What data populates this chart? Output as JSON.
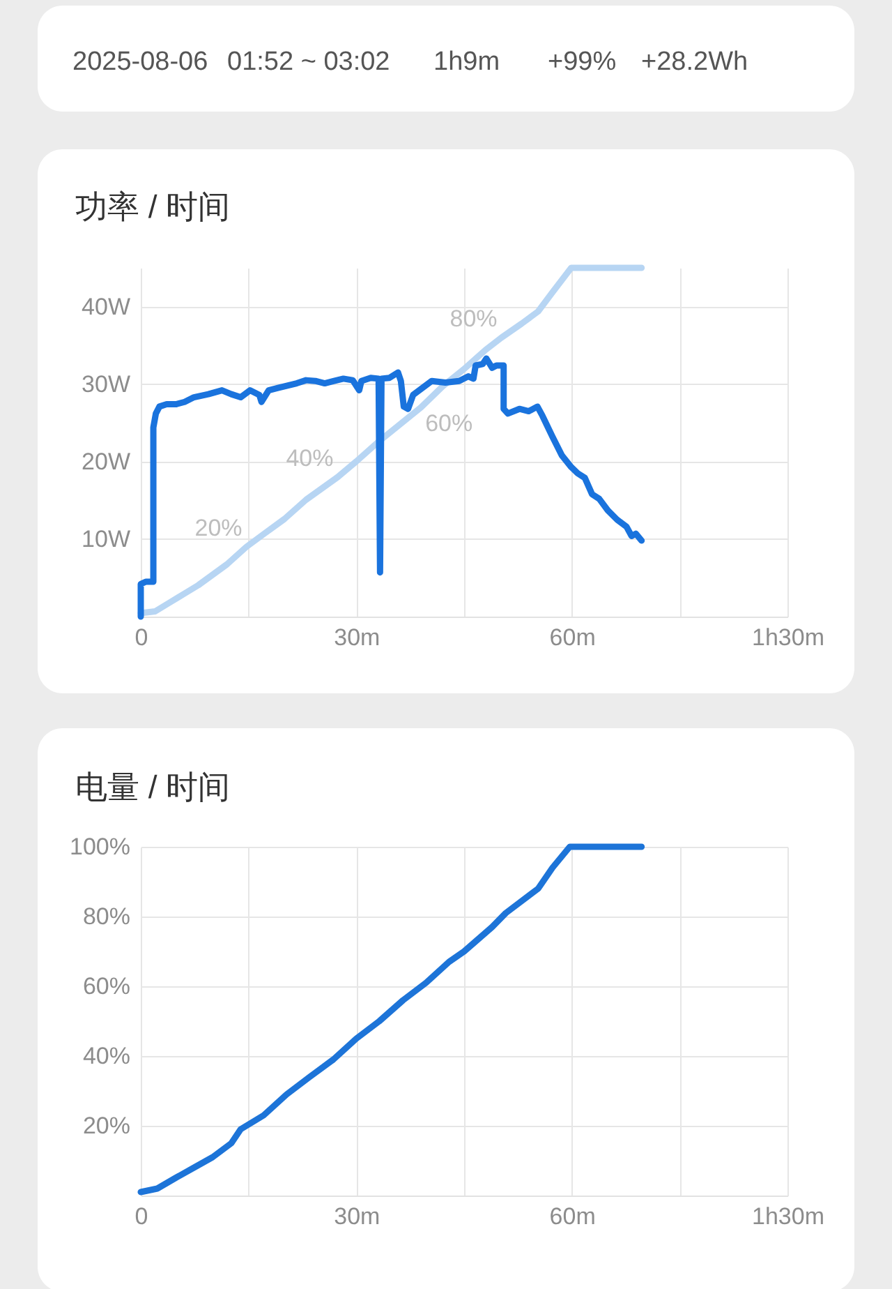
{
  "chart_data": [
    {
      "type": "other",
      "annotations": [
        "2025-08-06",
        "01:52 ~ 03:02",
        "1h9m",
        "+99%",
        "+28.2Wh"
      ]
    },
    {
      "type": "line",
      "title": "功率 / 时间",
      "xlim": [
        0,
        90
      ],
      "xticks": [
        0,
        {
          "value": 15,
          "label": null
        },
        {
          "value": 30,
          "label": "30m"
        },
        {
          "value": 45,
          "label": null
        },
        {
          "value": 60,
          "label": "60m"
        },
        {
          "value": 75,
          "label": null
        },
        {
          "value": 90,
          "label": "1h30m"
        }
      ],
      "ylim": [
        0,
        45
      ],
      "yticks": [
        {
          "value": 10,
          "label": "10W"
        },
        {
          "value": 20,
          "label": "20W"
        },
        {
          "value": 30,
          "label": "30W"
        },
        {
          "value": 40,
          "label": "40W"
        }
      ],
      "y2lim": [
        0,
        100
      ],
      "grid": true,
      "series": [
        {
          "color": "#1a73dd",
          "x": [
            0,
            0,
            0.7,
            1.75,
            1.75,
            2.1,
            2.6,
            3.6,
            4.9,
            6.1,
            7.4,
            9.4,
            11.3,
            12.6,
            13.9,
            15.2,
            16.5,
            16.8,
            17.8,
            19.1,
            20.4,
            21.7,
            23,
            24.3,
            25.6,
            26.9,
            28.2,
            29.5,
            30.4,
            30.7,
            32,
            33.1,
            33.3,
            33.5,
            34.6,
            35.8,
            36.2,
            36.6,
            37.2,
            37.9,
            39.2,
            40.5,
            42.4,
            44.3,
            45.6,
            46.3,
            46.6,
            47.6,
            48.1,
            48.9,
            49.5,
            50.5,
            50.5,
            51.1,
            52.7,
            54,
            55.2,
            55.9,
            57.3,
            58.6,
            59.9,
            60.8,
            61.8,
            62.8,
            63.8,
            65,
            66.3,
            67.6,
            68.3,
            68.9,
            69.7
          ],
          "values": [
            0,
            4.2,
            4.5,
            4.5,
            24.4,
            26.2,
            27.1,
            27.4,
            27.4,
            27.7,
            28.3,
            28.7,
            29.2,
            28.7,
            28.3,
            29.2,
            28.6,
            27.7,
            29.2,
            29.5,
            29.8,
            30.1,
            30.5,
            30.4,
            30.1,
            30.4,
            30.7,
            30.5,
            29.2,
            30.4,
            30.8,
            30.7,
            5.7,
            30.7,
            30.8,
            31.5,
            30.4,
            27.1,
            26.8,
            28.6,
            29.5,
            30.4,
            30.2,
            30.4,
            31,
            30.7,
            32.4,
            32.6,
            33.3,
            32.1,
            32.4,
            32.4,
            26.8,
            26.2,
            26.8,
            26.5,
            27.1,
            25.9,
            23.2,
            20.8,
            19.3,
            18.5,
            17.9,
            15.8,
            15.2,
            13.7,
            12.5,
            11.6,
            10.4,
            10.7,
            9.8
          ]
        },
        {
          "color": "#b7d5f3",
          "axis": "y2",
          "x": [
            0,
            2,
            4,
            6,
            8,
            10,
            12,
            14.7,
            17,
            20,
            23,
            27.4,
            30,
            33,
            36,
            39,
            42,
            45,
            48,
            50.2,
            53,
            55.3,
            57.3,
            59.9,
            69.7
          ],
          "values": [
            1,
            1.5,
            4,
            6.5,
            9,
            12,
            15,
            20,
            23.5,
            28,
            33.5,
            40,
            44.5,
            50,
            55,
            60,
            66,
            71,
            76.5,
            80,
            84,
            87.5,
            93,
            100,
            100
          ],
          "value_labels": [
            null,
            null,
            null,
            null,
            null,
            null,
            null,
            "20%",
            null,
            null,
            null,
            "40%",
            null,
            null,
            null,
            "60%",
            null,
            null,
            null,
            "80%",
            null,
            null,
            null,
            null,
            null
          ]
        }
      ]
    },
    {
      "type": "line",
      "title": "电量 / 时间",
      "xlim": [
        0,
        90
      ],
      "xticks": [
        0,
        {
          "value": 15,
          "label": null
        },
        {
          "value": 30,
          "label": "30m"
        },
        {
          "value": 45,
          "label": null
        },
        {
          "value": 60,
          "label": "60m"
        },
        {
          "value": 75,
          "label": null
        },
        {
          "value": 90,
          "label": "1h30m"
        }
      ],
      "ylim": [
        0,
        100
      ],
      "yticks": [
        {
          "value": 20,
          "label": "20%"
        },
        {
          "value": 40,
          "label": "40%"
        },
        {
          "value": 60,
          "label": "60%"
        },
        {
          "value": 80,
          "label": "80%"
        },
        {
          "value": 100,
          "label": "100%"
        }
      ],
      "grid": true,
      "series": [
        {
          "color": "#1d74d8",
          "x": [
            0,
            2.3,
            4.8,
            7.4,
            10,
            12.6,
            13.9,
            17.1,
            20.3,
            23.5,
            26.8,
            30,
            33.2,
            36.5,
            39.7,
            42.9,
            45,
            48.9,
            50.8,
            55.3,
            57.3,
            59.7,
            69.7
          ],
          "values": [
            1,
            2,
            5,
            8,
            11,
            15,
            19,
            23,
            29,
            34,
            39,
            45,
            50,
            56,
            61,
            67,
            70,
            77,
            81,
            88,
            94,
            100,
            100
          ]
        }
      ]
    }
  ]
}
